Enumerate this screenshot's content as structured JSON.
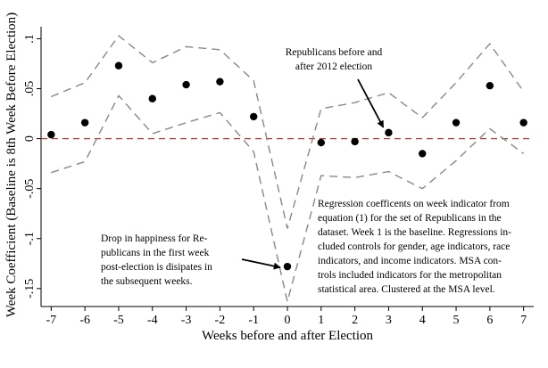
{
  "chart_data": {
    "type": "scatter",
    "title": "",
    "xlabel": "Weeks before and after Election",
    "ylabel": "Week Coefficient (Baseline is 8th Week Before Election)",
    "xlim": [
      -7.3,
      7.3
    ],
    "ylim": [
      -0.168,
      0.112
    ],
    "x_ticks": [
      -7,
      -6,
      -5,
      -4,
      -3,
      -2,
      -1,
      0,
      1,
      2,
      3,
      4,
      5,
      6,
      7
    ],
    "x_tick_labels": [
      "-7",
      "-6",
      "-5",
      "-4",
      "-3",
      "-2",
      "-1",
      "0",
      "1",
      "2",
      "3",
      "4",
      "5",
      "6",
      "7"
    ],
    "y_ticks": [
      -0.15,
      -0.1,
      -0.05,
      0,
      0.05,
      0.1
    ],
    "y_tick_labels": [
      "-.15",
      "-.1",
      "-.05",
      "0",
      ".05",
      ".1"
    ],
    "grid": false,
    "reference_line": {
      "y": 0,
      "color": "#c0392b",
      "style": "dashed"
    },
    "series": [
      {
        "type": "scatter",
        "x": [
          -7,
          -6,
          -5,
          -4,
          -3,
          -2,
          -1,
          0,
          1,
          2,
          3,
          4,
          5,
          6,
          7
        ],
        "values": [
          0.004,
          0.016,
          0.073,
          0.04,
          0.054,
          0.057,
          0.022,
          -0.128,
          -0.004,
          -0.003,
          0.006,
          -0.015,
          0.016,
          0.053,
          0.016
        ],
        "color": "#000000"
      },
      {
        "type": "line",
        "x": [
          -7,
          -6,
          -5,
          -4,
          -3,
          -2,
          -1,
          0,
          1,
          2,
          3,
          4,
          5,
          6,
          7
        ],
        "values": [
          0.042,
          0.056,
          0.103,
          0.076,
          0.092,
          0.089,
          0.058,
          -0.09,
          0.03,
          0.036,
          0.046,
          0.021,
          0.056,
          0.095,
          0.047
        ],
        "color": "#888888",
        "style": "dashed"
      },
      {
        "type": "line",
        "x": [
          -7,
          -6,
          -5,
          -4,
          -3,
          -2,
          -1,
          0,
          1,
          2,
          3,
          4,
          5,
          6,
          7
        ],
        "values": [
          -0.034,
          -0.023,
          0.043,
          0.005,
          0.016,
          0.026,
          -0.013,
          -0.163,
          -0.037,
          -0.039,
          -0.033,
          -0.05,
          -0.022,
          0.01,
          -0.015
        ],
        "color": "#888888",
        "style": "dashed"
      }
    ],
    "annotations": [
      {
        "id": "republicans",
        "lines": [
          "Republicans before and",
          "after 2012 election"
        ]
      },
      {
        "id": "drop",
        "lines": [
          "Drop in happiness for Re-",
          "publicans in the first week",
          "post-election is disipates in",
          "the subsequent weeks."
        ]
      },
      {
        "id": "regression",
        "lines": [
          "Regression coefficents on week indicator from",
          "equation (1) for the set of Republicans in the",
          "dataset. Week 1 is the baseline. Regressions in-",
          "cluded controls for gender, age indicators, race",
          "indicators, and income indicators. MSA con-",
          "trols included indicators for the metropolitan",
          "statistical area. Clustered at the MSA level."
        ]
      }
    ]
  }
}
